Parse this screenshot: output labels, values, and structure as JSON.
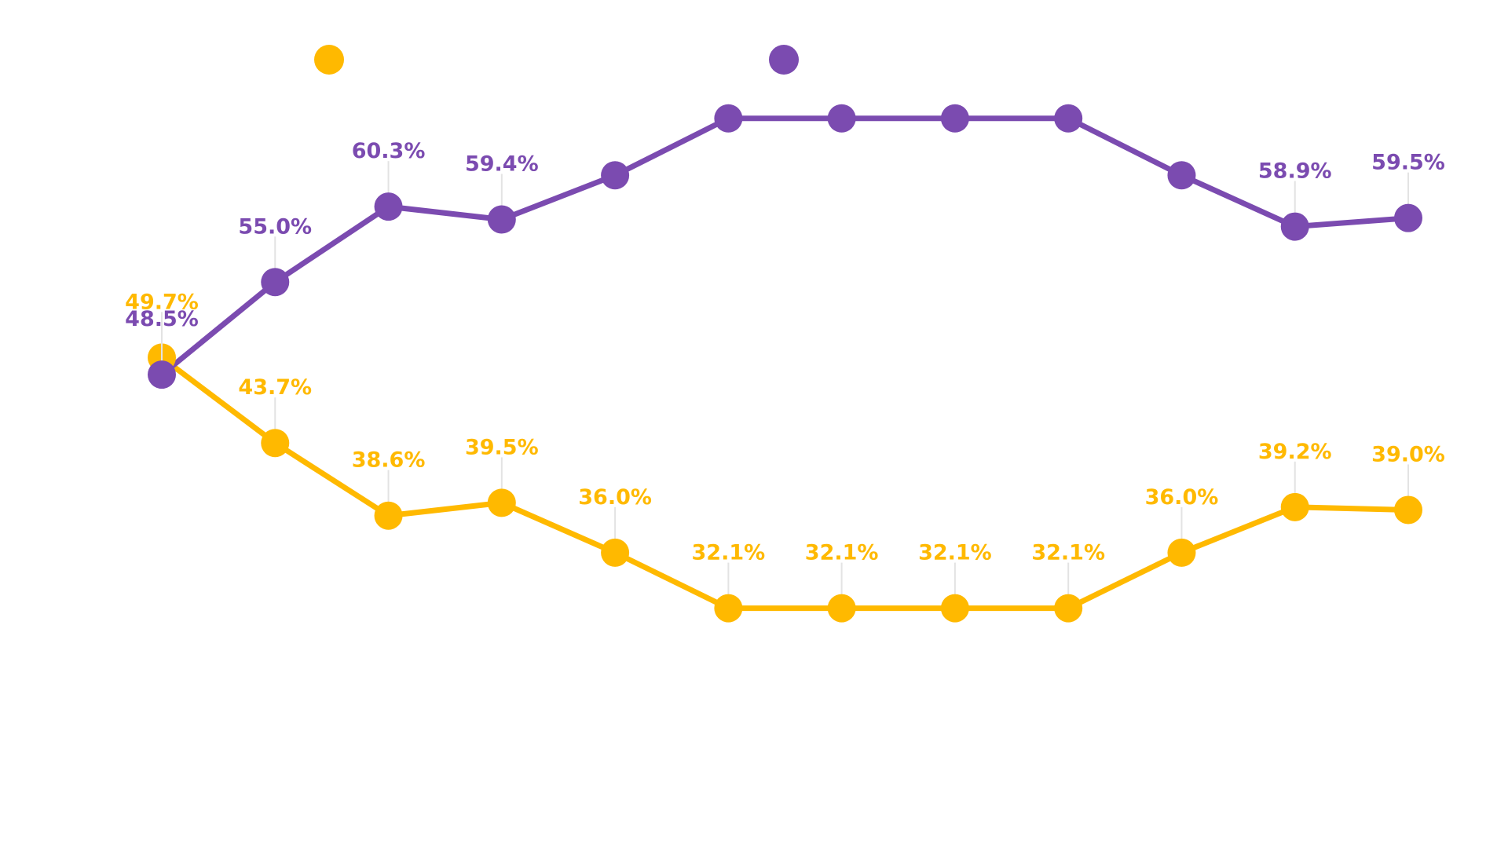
{
  "chart_data": {
    "type": "line",
    "categories": [
      null,
      null,
      null,
      null,
      null,
      null,
      null,
      null,
      null,
      null,
      null,
      null
    ],
    "ylim": [
      20,
      72
    ],
    "series": [
      {
        "color": "#FFB900",
        "values": [
          49.7,
          43.7,
          38.6,
          39.5,
          36.0,
          32.1,
          32.1,
          32.1,
          32.1,
          36.0,
          39.2,
          39.0
        ],
        "value_labels": [
          "49.7%",
          "43.7%",
          "38.6%",
          "39.5%",
          "36.0%",
          "32.1%",
          "32.1%",
          "32.1%",
          "32.1%",
          "36.0%",
          "39.2%",
          "39.0%"
        ]
      },
      {
        "color": "#7B4BB0",
        "values": [
          48.5,
          55.0,
          60.3,
          59.4,
          62.5,
          66.5,
          66.5,
          66.5,
          66.5,
          62.5,
          58.9,
          59.5
        ],
        "value_labels": [
          "48.5%",
          "55.0%",
          "60.3%",
          "59.4%",
          null,
          null,
          null,
          null,
          null,
          null,
          "58.9%",
          "59.5%"
        ]
      }
    ]
  }
}
